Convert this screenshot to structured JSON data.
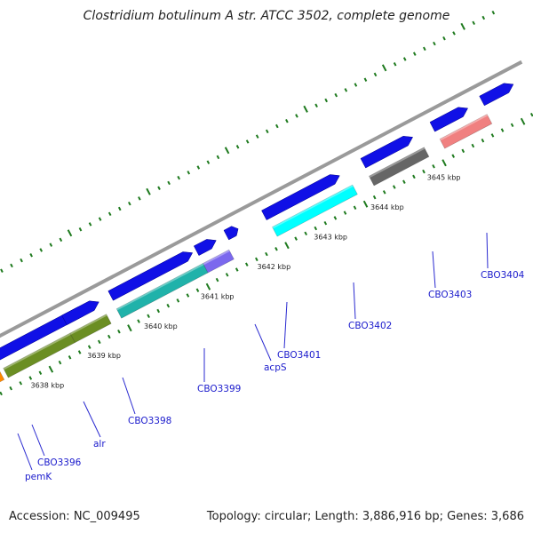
{
  "title": "Clostridium botulinum A str. ATCC 3502, complete genome",
  "footer": {
    "accession": "Accession: NC_009495",
    "summary": "Topology: circular; Length: 3,886,916 bp; Genes: 3,686"
  },
  "colors": {
    "backbone": "#9a9a9a",
    "tick": "#1e7a1e",
    "cds_forward": "#1010e6",
    "label": "#1a1acc",
    "leader_line": "#2a2ad0"
  },
  "scale_labels": [
    "3638 kbp",
    "3639 kbp",
    "3640 kbp",
    "3641 kbp",
    "3642 kbp",
    "3643 kbp",
    "3644 kbp",
    "3645 kbp"
  ],
  "forward_cds_count": 12,
  "features": [
    {
      "label": "pemK",
      "color": "#44cc33"
    },
    {
      "label": "CBO3396",
      "color": "#ff8800"
    },
    {
      "label": "alr",
      "color": "#6b8e23"
    },
    {
      "label": "CBO3398",
      "color": "#6b8e23"
    },
    {
      "label": "CBO3399",
      "color": "#20b2aa"
    },
    {
      "label": "acpS",
      "color": "#7b68ee"
    },
    {
      "label": "CBO3401",
      "color": "#1010e6"
    },
    {
      "label": "CBO3402",
      "color": "#00ffff"
    },
    {
      "label": "CBO3403",
      "color": "#666666"
    },
    {
      "label": "CBO3404",
      "color": "#f08080"
    }
  ]
}
